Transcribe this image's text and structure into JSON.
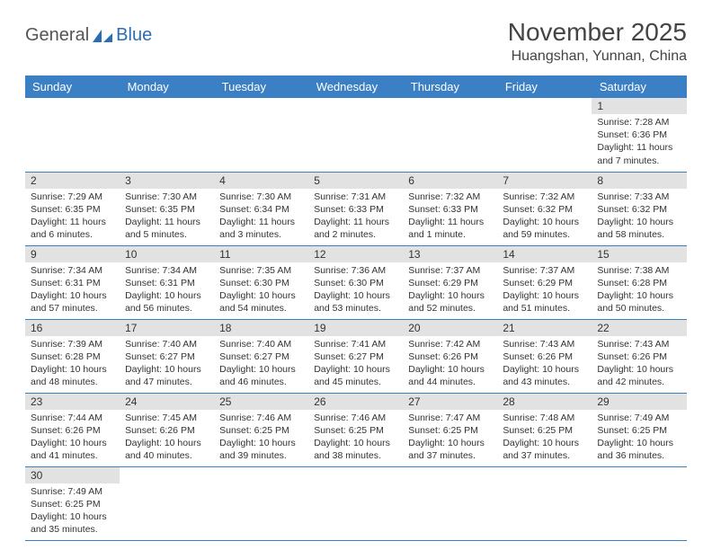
{
  "logo": {
    "text1": "General",
    "text2": "Blue"
  },
  "title": "November 2025",
  "location": "Huangshan, Yunnan, China",
  "header_bg": "#3b7fc4",
  "daynum_bg": "#e2e2e2",
  "divider_color": "#3b7fc4",
  "days_of_week": [
    "Sunday",
    "Monday",
    "Tuesday",
    "Wednesday",
    "Thursday",
    "Friday",
    "Saturday"
  ],
  "weeks": [
    [
      null,
      null,
      null,
      null,
      null,
      null,
      {
        "n": "1",
        "sr": "7:28 AM",
        "ss": "6:36 PM",
        "dl": "11 hours and 7 minutes."
      }
    ],
    [
      {
        "n": "2",
        "sr": "7:29 AM",
        "ss": "6:35 PM",
        "dl": "11 hours and 6 minutes."
      },
      {
        "n": "3",
        "sr": "7:30 AM",
        "ss": "6:35 PM",
        "dl": "11 hours and 5 minutes."
      },
      {
        "n": "4",
        "sr": "7:30 AM",
        "ss": "6:34 PM",
        "dl": "11 hours and 3 minutes."
      },
      {
        "n": "5",
        "sr": "7:31 AM",
        "ss": "6:33 PM",
        "dl": "11 hours and 2 minutes."
      },
      {
        "n": "6",
        "sr": "7:32 AM",
        "ss": "6:33 PM",
        "dl": "11 hours and 1 minute."
      },
      {
        "n": "7",
        "sr": "7:32 AM",
        "ss": "6:32 PM",
        "dl": "10 hours and 59 minutes."
      },
      {
        "n": "8",
        "sr": "7:33 AM",
        "ss": "6:32 PM",
        "dl": "10 hours and 58 minutes."
      }
    ],
    [
      {
        "n": "9",
        "sr": "7:34 AM",
        "ss": "6:31 PM",
        "dl": "10 hours and 57 minutes."
      },
      {
        "n": "10",
        "sr": "7:34 AM",
        "ss": "6:31 PM",
        "dl": "10 hours and 56 minutes."
      },
      {
        "n": "11",
        "sr": "7:35 AM",
        "ss": "6:30 PM",
        "dl": "10 hours and 54 minutes."
      },
      {
        "n": "12",
        "sr": "7:36 AM",
        "ss": "6:30 PM",
        "dl": "10 hours and 53 minutes."
      },
      {
        "n": "13",
        "sr": "7:37 AM",
        "ss": "6:29 PM",
        "dl": "10 hours and 52 minutes."
      },
      {
        "n": "14",
        "sr": "7:37 AM",
        "ss": "6:29 PM",
        "dl": "10 hours and 51 minutes."
      },
      {
        "n": "15",
        "sr": "7:38 AM",
        "ss": "6:28 PM",
        "dl": "10 hours and 50 minutes."
      }
    ],
    [
      {
        "n": "16",
        "sr": "7:39 AM",
        "ss": "6:28 PM",
        "dl": "10 hours and 48 minutes."
      },
      {
        "n": "17",
        "sr": "7:40 AM",
        "ss": "6:27 PM",
        "dl": "10 hours and 47 minutes."
      },
      {
        "n": "18",
        "sr": "7:40 AM",
        "ss": "6:27 PM",
        "dl": "10 hours and 46 minutes."
      },
      {
        "n": "19",
        "sr": "7:41 AM",
        "ss": "6:27 PM",
        "dl": "10 hours and 45 minutes."
      },
      {
        "n": "20",
        "sr": "7:42 AM",
        "ss": "6:26 PM",
        "dl": "10 hours and 44 minutes."
      },
      {
        "n": "21",
        "sr": "7:43 AM",
        "ss": "6:26 PM",
        "dl": "10 hours and 43 minutes."
      },
      {
        "n": "22",
        "sr": "7:43 AM",
        "ss": "6:26 PM",
        "dl": "10 hours and 42 minutes."
      }
    ],
    [
      {
        "n": "23",
        "sr": "7:44 AM",
        "ss": "6:26 PM",
        "dl": "10 hours and 41 minutes."
      },
      {
        "n": "24",
        "sr": "7:45 AM",
        "ss": "6:26 PM",
        "dl": "10 hours and 40 minutes."
      },
      {
        "n": "25",
        "sr": "7:46 AM",
        "ss": "6:25 PM",
        "dl": "10 hours and 39 minutes."
      },
      {
        "n": "26",
        "sr": "7:46 AM",
        "ss": "6:25 PM",
        "dl": "10 hours and 38 minutes."
      },
      {
        "n": "27",
        "sr": "7:47 AM",
        "ss": "6:25 PM",
        "dl": "10 hours and 37 minutes."
      },
      {
        "n": "28",
        "sr": "7:48 AM",
        "ss": "6:25 PM",
        "dl": "10 hours and 37 minutes."
      },
      {
        "n": "29",
        "sr": "7:49 AM",
        "ss": "6:25 PM",
        "dl": "10 hours and 36 minutes."
      }
    ],
    [
      {
        "n": "30",
        "sr": "7:49 AM",
        "ss": "6:25 PM",
        "dl": "10 hours and 35 minutes."
      },
      null,
      null,
      null,
      null,
      null,
      null
    ]
  ],
  "labels": {
    "sunrise": "Sunrise:",
    "sunset": "Sunset:",
    "daylight": "Daylight:"
  }
}
